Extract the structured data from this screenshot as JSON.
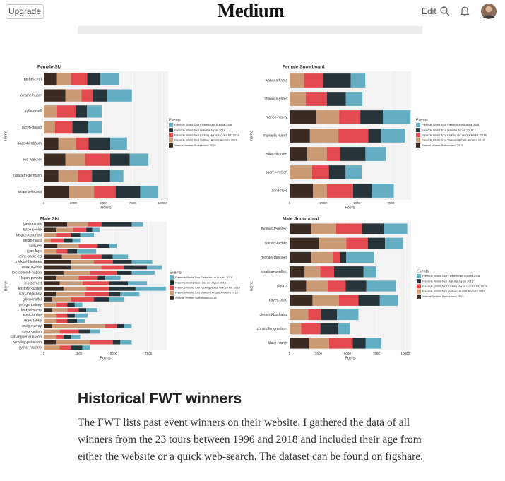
{
  "header": {
    "upgrade": "Upgrade",
    "logo": "Medium",
    "edit": "Edit"
  },
  "chart_data": [
    {
      "type": "bar",
      "orientation": "horizontal",
      "stacked": true,
      "title": "Female Ski",
      "xlabel": "Points",
      "ylabel": "name",
      "legend_title": "Events",
      "legend": "right",
      "categories": [
        "rachel-croft",
        "lorraine-huber",
        "kylie-orsell",
        "jaclyn-paaso",
        "hazel-birnbaum",
        "eva-walkner",
        "elisabeth-gerritzen",
        "arianna-tricomi"
      ],
      "series": [
        {
          "name": "Freeride World Tour Fieberbrunn Austria 2018",
          "color": "#64aec4",
          "values": [
            1590,
            2070,
            1240,
            1180,
            1420,
            1590,
            1120,
            1530
          ]
        },
        {
          "name": "Freeride World Tour Hakuba Japan 2018",
          "color": "#263338",
          "values": [
            1120,
            1240,
            940,
            1300,
            1830,
            1650,
            1530,
            2070
          ]
        },
        {
          "name": "Freeride World Tour Kicking Horse Golden BC 2018",
          "color": "#e24a4f",
          "values": [
            1360,
            940,
            1650,
            1480,
            1060,
            2120,
            1180,
            1830
          ]
        },
        {
          "name": "Freeride World Tour Vallnord Arcalis Andorra 2018",
          "color": "#c99a74",
          "values": [
            1240,
            1360,
            1060,
            940,
            1480,
            1650,
            1650,
            2120
          ]
        },
        {
          "name": "Xtreme Verbier Switzerland 2018",
          "color": "#3b2a22",
          "values": [
            1060,
            1830,
            0,
            0,
            1240,
            1830,
            1240,
            2120
          ]
        }
      ],
      "xlim": [
        0,
        10500
      ],
      "xticks": [
        0,
        2500,
        5000,
        7500,
        10000
      ],
      "grid": true
    },
    {
      "type": "bar",
      "orientation": "horizontal",
      "stacked": true,
      "title": "Female Snowboard",
      "xlabel": "Points",
      "ylabel": "name",
      "legend_title": "Events",
      "legend": "right",
      "categories": [
        "wahana-fiama",
        "shannan-yates",
        "marion-haerty",
        "manuela-mandl",
        "erika-vikander",
        "audrey-hebert",
        "anne-flore"
      ],
      "series": [
        {
          "name": "Freeride World Tour Fieberbrunn Austria 2018",
          "color": "#64aec4",
          "values": [
            1080,
            1240,
            2050,
            1780,
            1510,
            1190,
            1620
          ]
        },
        {
          "name": "Freeride World Tour Hakuba Japan 2018",
          "color": "#263338",
          "values": [
            2050,
            1400,
            1670,
            920,
            1890,
            1240,
            1400
          ]
        },
        {
          "name": "Freeride World Tour Kicking Horse Golden BC 2018",
          "color": "#e24a4f",
          "values": [
            1400,
            1570,
            1570,
            2210,
            970,
            1240,
            1940
          ]
        },
        {
          "name": "Freeride World Tour Vallnord Arcalis Andorra 2018",
          "color": "#c99a74",
          "values": [
            1080,
            1190,
            1670,
            2110,
            1460,
            1670,
            1030
          ]
        },
        {
          "name": "Xtreme Verbier Switzerland 2018",
          "color": "#3b2a22",
          "values": [
            0,
            0,
            2000,
            1510,
            1300,
            0,
            1730
          ]
        }
      ],
      "xlim": [
        0,
        9000
      ],
      "xticks": [
        0,
        2500,
        5000,
        7500
      ],
      "grid": true
    },
    {
      "type": "bar",
      "orientation": "horizontal",
      "stacked": true,
      "title": "Male Ski",
      "xlabel": "Points",
      "ylabel": "name",
      "legend_title": "Events",
      "legend": "right",
      "categories": [
        "yann-rausis",
        "trace-cooke",
        "tasuke-kusunoki",
        "stefan-hausl",
        "sam-lee",
        "ryan-faye",
        "reine-barkered",
        "mickael-bimboes",
        "markus-eder",
        "loic-collomb-patton",
        "logan-pehota",
        "leo-slemett",
        "kristofer-turdell",
        "ivan-malakhov",
        "gillen-maffei",
        "george-rodney",
        "felix-wiemers",
        "fabio-studer",
        "drew-tabke",
        "craig-murray",
        "conor-pelton",
        "carl-regner-eriksson",
        "berkeley-patterson",
        "aymar-navarro"
      ],
      "series": [
        {
          "name": "Freeride World Tour Fieberbrunn Austria 2018",
          "color": "#64aec4",
          "values": [
            810,
            540,
            980,
            540,
            540,
            1360,
            1090,
            1470,
            1090,
            1630,
            1090,
            1360,
            2170,
            1360,
            1090,
            540,
            810,
            920,
            540,
            540,
            710,
            650,
            810,
            540
          ]
        },
        {
          "name": "Freeride World Tour Hakuba Japan 2018",
          "color": "#263338",
          "values": [
            2170,
            430,
            650,
            650,
            810,
            710,
            810,
            1360,
            1630,
            1090,
            540,
            1360,
            1900,
            810,
            1090,
            540,
            540,
            540,
            710,
            540,
            810,
            540,
            540,
            810
          ]
        },
        {
          "name": "Freeride World Tour Kicking Horse Golden BC 2018",
          "color": "#e24a4f",
          "values": [
            980,
            920,
            1090,
            920,
            1360,
            810,
            1470,
            1360,
            1630,
            1900,
            1360,
            1900,
            1630,
            1740,
            1630,
            810,
            810,
            810,
            810,
            810,
            1360,
            540,
            1630,
            810
          ]
        },
        {
          "name": "Freeride World Tour Vallnord Arcalis Andorra 2018",
          "color": "#c99a74",
          "values": [
            1470,
            1250,
            870,
            490,
            1520,
            870,
            1360,
            1630,
            2170,
            1900,
            1630,
            1630,
            1630,
            2060,
            1360,
            870,
            1090,
            870,
            870,
            3800,
            1140,
            870,
            2440,
            1140
          ]
        },
        {
          "name": "Xtreme Verbier Switzerland 2018",
          "color": "#3b2a22",
          "values": [
            1680,
            870,
            0,
            0,
            980,
            0,
            1300,
            1950,
            1950,
            1410,
            870,
            1140,
            1410,
            870,
            600,
            0,
            600,
            0,
            0,
            600,
            0,
            0,
            870,
            0
          ]
        }
      ],
      "xlim": [
        0,
        8800
      ],
      "xticks": [
        0,
        2500,
        5000,
        7500
      ],
      "grid": true
    },
    {
      "type": "bar",
      "orientation": "horizontal",
      "stacked": true,
      "title": "Male Snowboard",
      "xlabel": "Points",
      "ylabel": "name",
      "legend_title": "Events",
      "legend": "right",
      "categories": [
        "thomas-feurstein",
        "sammy-luebke",
        "michael-bimboes",
        "jonathan-penfield",
        "gigi-ruf",
        "davey-baird",
        "clement-bochatay",
        "christoffer-granbom",
        "blake-hamm"
      ],
      "series": [
        {
          "name": "Freeride World Tour Fieberbrunn Austria 2018",
          "color": "#64aec4",
          "values": [
            2050,
            1550,
            2420,
            1120,
            2540,
            1550,
            1860,
            990,
            1360
          ]
        },
        {
          "name": "Freeride World Tour Hakuba Japan 2018",
          "color": "#263338",
          "values": [
            1860,
            1490,
            560,
            2540,
            1800,
            1860,
            1360,
            1550,
            1120
          ]
        },
        {
          "name": "Freeride World Tour Kicking Horse Golden BC 2018",
          "color": "#e24a4f",
          "values": [
            2230,
            1860,
            560,
            1180,
            1550,
            1670,
            1120,
            1670,
            2050
          ]
        },
        {
          "name": "Freeride World Tour Vallnord Arcalis Andorra 2018",
          "color": "#c99a74",
          "values": [
            2170,
            2360,
            1920,
            1360,
            1860,
            2290,
            1610,
            990,
            1740
          ]
        },
        {
          "name": "Xtreme Verbier Switzerland 2018",
          "color": "#3b2a22",
          "values": [
            1860,
            2540,
            1860,
            1300,
            1430,
            1980,
            0,
            0,
            1670
          ]
        }
      ],
      "xlim": [
        0,
        10500
      ],
      "xticks": [
        0,
        2500,
        5000,
        7500,
        10000
      ],
      "grid": true
    }
  ],
  "article": {
    "heading": "Historical FWT winners",
    "text_before": "The FWT lists past event winners on their ",
    "link": "website",
    "text_after": ". I gathered the data of all winners from the 23 tours between 1996 and 2018 and included their age from either the website or a quick web-search. The dataset can be found on figshare."
  }
}
